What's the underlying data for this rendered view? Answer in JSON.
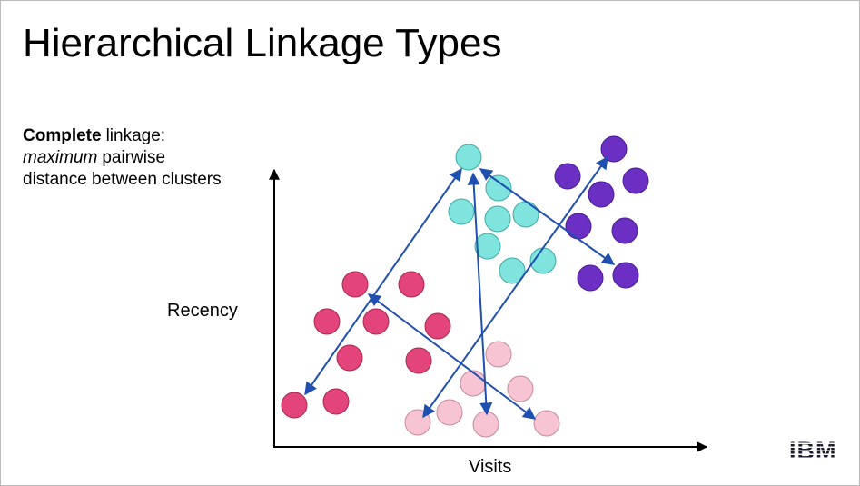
{
  "title": "Hierarchical Linkage Types",
  "description": {
    "line1": {
      "bold": "Complete",
      "rest": "linkage:"
    },
    "line2": {
      "italic": "maximum",
      "rest": "pairwise"
    },
    "line3": "distance between clusters"
  },
  "axes": {
    "y_label": "Recency",
    "x_label": "Visits"
  },
  "logo": "IBM"
}
